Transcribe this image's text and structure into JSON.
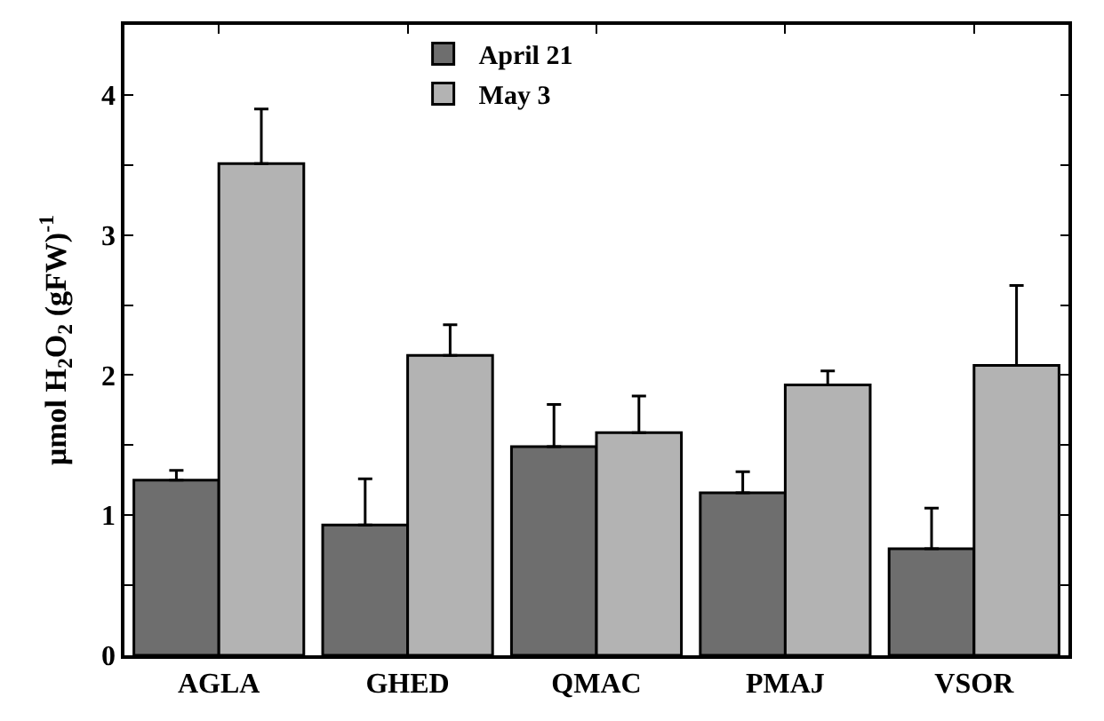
{
  "chart_data": {
    "type": "bar",
    "categories": [
      "AGLA",
      "GHED",
      "QMAC",
      "PMAJ",
      "VSOR"
    ],
    "series": [
      {
        "name": "April 21",
        "color": "#6e6e6e",
        "values": [
          1.25,
          0.93,
          1.49,
          1.16,
          0.76
        ],
        "errors": [
          [
            1.25,
            1.32
          ],
          [
            0.93,
            1.26
          ],
          [
            1.49,
            1.79
          ],
          [
            1.16,
            1.31
          ],
          [
            0.76,
            1.05
          ]
        ]
      },
      {
        "name": "May 3",
        "color": "#b3b3b3",
        "values": [
          3.51,
          2.14,
          1.59,
          1.93,
          2.07
        ],
        "errors": [
          [
            3.51,
            3.9
          ],
          [
            2.14,
            2.36
          ],
          [
            1.59,
            1.85
          ],
          [
            1.93,
            2.03
          ],
          [
            2.07,
            2.64
          ]
        ]
      }
    ],
    "ylabel": "μmol H$_{2}$O$_{2}$ (gFW)$^{-1}$",
    "ylim": [
      0,
      4.5
    ],
    "yticks": [
      0,
      {
        "value": 0.5,
        "label": null
      },
      1,
      {
        "value": 1.5,
        "label": null
      },
      2,
      {
        "value": 2.5,
        "label": null
      },
      3,
      {
        "value": 3.5,
        "label": null
      },
      4
    ],
    "legend": "top"
  }
}
